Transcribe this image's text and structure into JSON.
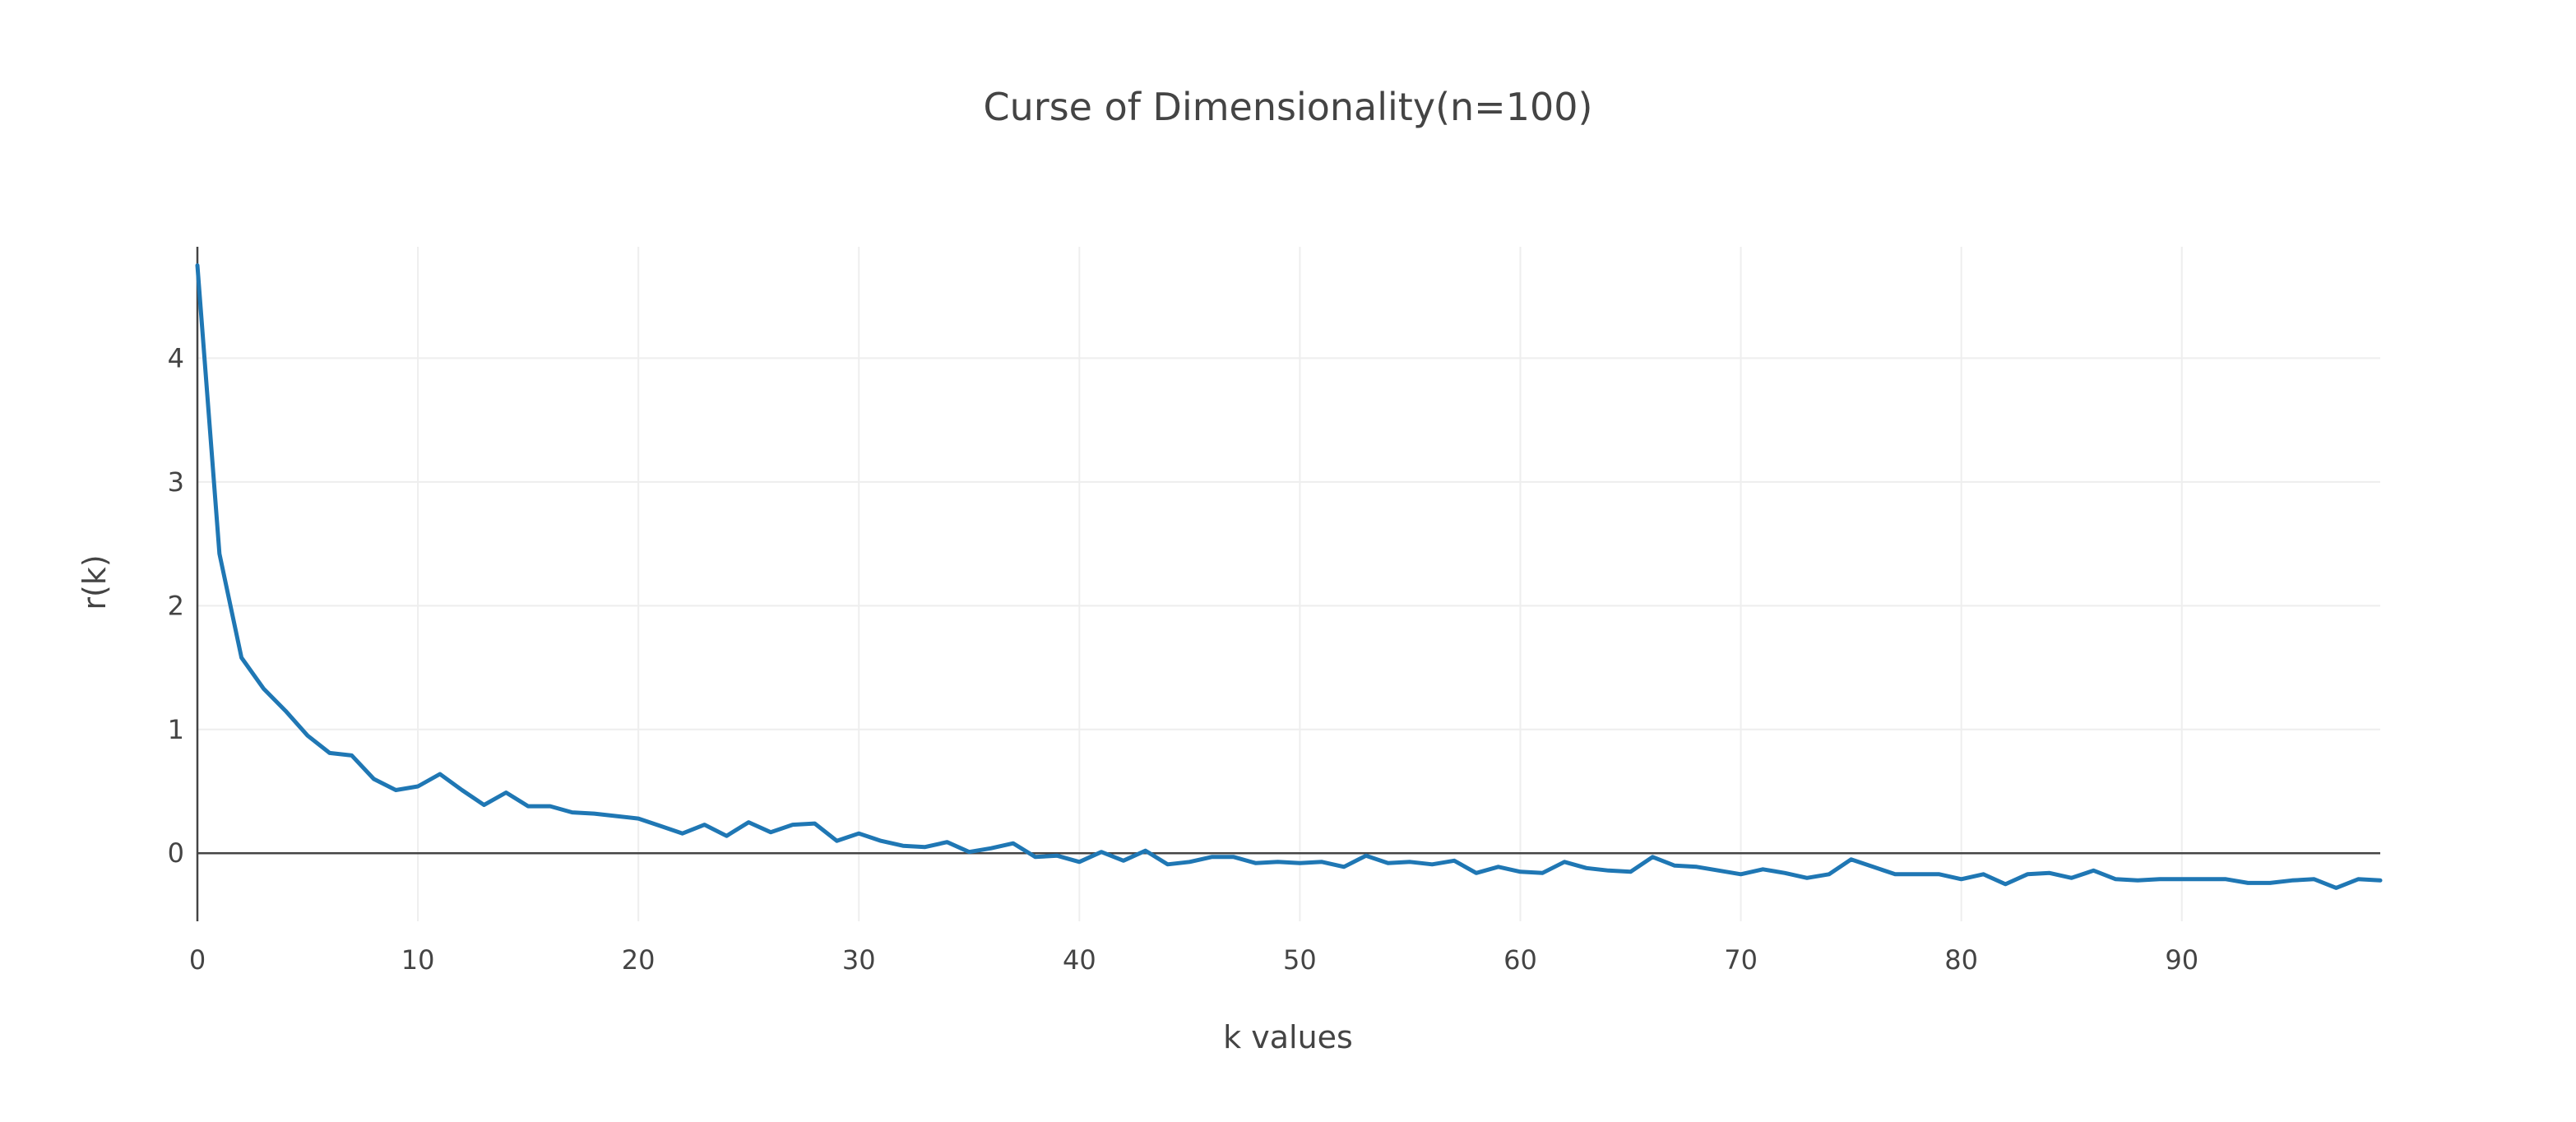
{
  "chart_data": {
    "type": "line",
    "title": "Curse of Dimensionality(n=100)",
    "xlabel": "k values",
    "ylabel": "r(k)",
    "xlim": [
      0,
      99
    ],
    "ylim": [
      -0.55,
      4.9
    ],
    "x_ticks": [
      0,
      10,
      20,
      30,
      40,
      50,
      60,
      70,
      80,
      90
    ],
    "y_ticks": [
      0,
      1,
      2,
      3,
      4
    ],
    "grid": true,
    "line_color": "#1f77b4",
    "x": [
      0,
      1,
      2,
      3,
      4,
      5,
      6,
      7,
      8,
      9,
      10,
      11,
      12,
      13,
      14,
      15,
      16,
      17,
      18,
      19,
      20,
      21,
      22,
      23,
      24,
      25,
      26,
      27,
      28,
      29,
      30,
      31,
      32,
      33,
      34,
      35,
      36,
      37,
      38,
      39,
      40,
      41,
      42,
      43,
      44,
      45,
      46,
      47,
      48,
      49,
      50,
      51,
      52,
      53,
      54,
      55,
      56,
      57,
      58,
      59,
      60,
      61,
      62,
      63,
      64,
      65,
      66,
      67,
      68,
      69,
      70,
      71,
      72,
      73,
      74,
      75,
      76,
      77,
      78,
      79,
      80,
      81,
      82,
      83,
      84,
      85,
      86,
      87,
      88,
      89,
      90,
      91,
      92,
      93,
      94,
      95,
      96,
      97,
      98,
      99
    ],
    "y": [
      4.75,
      2.42,
      1.58,
      1.33,
      1.15,
      0.95,
      0.81,
      0.79,
      0.6,
      0.51,
      0.54,
      0.64,
      0.51,
      0.39,
      0.49,
      0.38,
      0.38,
      0.33,
      0.32,
      0.3,
      0.28,
      0.22,
      0.16,
      0.23,
      0.14,
      0.25,
      0.17,
      0.23,
      0.24,
      0.1,
      0.16,
      0.1,
      0.06,
      0.05,
      0.09,
      0.01,
      0.04,
      0.08,
      -0.03,
      -0.02,
      -0.07,
      0.01,
      -0.06,
      0.02,
      -0.09,
      -0.07,
      -0.03,
      -0.03,
      -0.08,
      -0.07,
      -0.08,
      -0.07,
      -0.11,
      -0.02,
      -0.08,
      -0.07,
      -0.09,
      -0.06,
      -0.16,
      -0.11,
      -0.15,
      -0.16,
      -0.07,
      -0.12,
      -0.14,
      -0.15,
      -0.03,
      -0.1,
      -0.11,
      -0.14,
      -0.17,
      -0.13,
      -0.16,
      -0.2,
      -0.17,
      -0.05,
      -0.11,
      -0.17,
      -0.17,
      -0.17,
      -0.21,
      -0.17,
      -0.25,
      -0.17,
      -0.16,
      -0.2,
      -0.14,
      -0.21,
      -0.22,
      -0.21,
      -0.21,
      -0.21,
      -0.21,
      -0.24,
      -0.24,
      -0.22,
      -0.21,
      -0.28,
      -0.21,
      -0.22
    ]
  }
}
